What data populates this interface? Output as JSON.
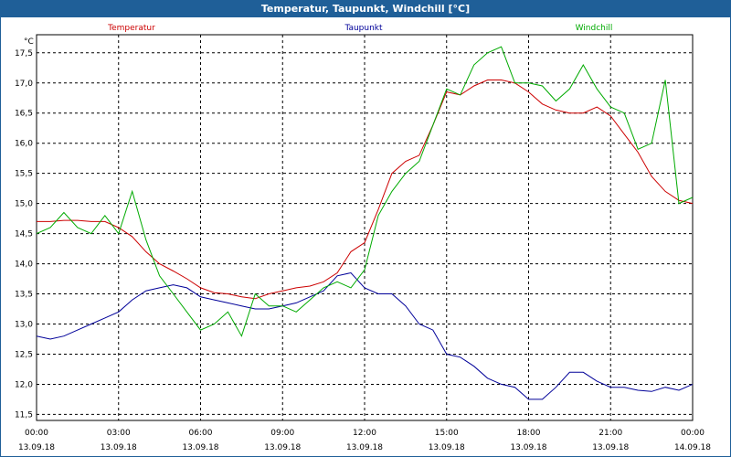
{
  "window": {
    "title": "Temperatur, Taupunkt, Windchill [°C]"
  },
  "colors": {
    "titlebar": "#1f5f98",
    "temperature": "#cc0000",
    "dewpoint": "#000099",
    "windchill": "#00aa00",
    "grid": "#000000"
  },
  "chart_data": {
    "type": "line",
    "title": "Temperatur, Taupunkt, Windchill [°C]",
    "ylabel": "°C",
    "ylim": [
      11.4,
      17.8
    ],
    "xlim": [
      0,
      24
    ],
    "grid": true,
    "legend_placement": "top",
    "y_ticks": [
      "11,5",
      "12,0",
      "12,5",
      "13,0",
      "13,5",
      "14,0",
      "14,5",
      "15,0",
      "15,5",
      "16,0",
      "16,5",
      "17,0",
      "17,5"
    ],
    "y_tick_values": [
      11.5,
      12.0,
      12.5,
      13.0,
      13.5,
      14.0,
      14.5,
      15.0,
      15.5,
      16.0,
      16.5,
      17.0,
      17.5
    ],
    "x_ticks": [
      {
        "time": "00:00",
        "date": "13.09.18"
      },
      {
        "time": "03:00",
        "date": "13.09.18"
      },
      {
        "time": "06:00",
        "date": "13.09.18"
      },
      {
        "time": "09:00",
        "date": "13.09.18"
      },
      {
        "time": "12:00",
        "date": "13.09.18"
      },
      {
        "time": "15:00",
        "date": "13.09.18"
      },
      {
        "time": "18:00",
        "date": "13.09.18"
      },
      {
        "time": "21:00",
        "date": "13.09.18"
      },
      {
        "time": "00:00",
        "date": "14.09.18"
      }
    ],
    "x_tick_hours": [
      0,
      3,
      6,
      9,
      12,
      15,
      18,
      21,
      24
    ],
    "series": [
      {
        "name": "Temperatur",
        "color": "#cc0000",
        "x": [
          0,
          0.5,
          1,
          1.5,
          2,
          2.5,
          3,
          3.5,
          4,
          4.5,
          5,
          5.5,
          6,
          6.5,
          7,
          7.5,
          8,
          8.5,
          9,
          9.5,
          10,
          10.5,
          11,
          11.5,
          12,
          12.5,
          13,
          13.5,
          14,
          14.5,
          15,
          15.5,
          16,
          16.5,
          17,
          17.5,
          18,
          18.5,
          19,
          19.5,
          20,
          20.5,
          21,
          21.5,
          22,
          22.5,
          23,
          23.5,
          24
        ],
        "values": [
          14.7,
          14.7,
          14.72,
          14.72,
          14.7,
          14.7,
          14.6,
          14.45,
          14.2,
          14.0,
          13.88,
          13.75,
          13.6,
          13.52,
          13.5,
          13.45,
          13.42,
          13.5,
          13.55,
          13.6,
          13.63,
          13.7,
          13.85,
          14.2,
          14.35,
          14.9,
          15.5,
          15.7,
          15.8,
          16.3,
          16.85,
          16.8,
          16.95,
          17.05,
          17.05,
          17.0,
          16.85,
          16.65,
          16.55,
          16.5,
          16.5,
          16.6,
          16.45,
          16.15,
          15.85,
          15.45,
          15.2,
          15.05,
          15.0
        ]
      },
      {
        "name": "Taupunkt",
        "color": "#000099",
        "x": [
          0,
          0.5,
          1,
          1.5,
          2,
          2.5,
          3,
          3.5,
          4,
          4.5,
          5,
          5.5,
          6,
          6.5,
          7,
          7.5,
          8,
          8.5,
          9,
          9.5,
          10,
          10.5,
          11,
          11.5,
          12,
          12.5,
          13,
          13.5,
          14,
          14.5,
          15,
          15.5,
          16,
          16.5,
          17,
          17.5,
          18,
          18.5,
          19,
          19.5,
          20,
          20.5,
          21,
          21.5,
          22,
          22.5,
          23,
          23.5,
          24
        ],
        "values": [
          12.8,
          12.75,
          12.8,
          12.9,
          13.0,
          13.1,
          13.2,
          13.4,
          13.55,
          13.6,
          13.65,
          13.6,
          13.45,
          13.4,
          13.35,
          13.3,
          13.25,
          13.25,
          13.3,
          13.35,
          13.45,
          13.55,
          13.8,
          13.85,
          13.6,
          13.5,
          13.5,
          13.3,
          13.0,
          12.9,
          12.5,
          12.45,
          12.3,
          12.1,
          12.0,
          11.95,
          11.75,
          11.75,
          11.95,
          12.2,
          12.2,
          12.05,
          11.95,
          11.95,
          11.9,
          11.88,
          11.95,
          11.9,
          12.0
        ]
      },
      {
        "name": "Windchill",
        "color": "#00aa00",
        "x": [
          0,
          0.5,
          1,
          1.5,
          2,
          2.5,
          3,
          3.5,
          4,
          4.5,
          5,
          5.5,
          6,
          6.5,
          7,
          7.5,
          8,
          8.5,
          9,
          9.5,
          10,
          10.5,
          11,
          11.5,
          12,
          12.5,
          13,
          13.5,
          14,
          14.5,
          15,
          15.5,
          16,
          16.5,
          17,
          17.5,
          18,
          18.5,
          19,
          19.5,
          20,
          20.5,
          21,
          21.5,
          22,
          22.5,
          23,
          23.5,
          24
        ],
        "values": [
          14.5,
          14.6,
          14.85,
          14.6,
          14.5,
          14.8,
          14.5,
          15.2,
          14.4,
          13.8,
          13.5,
          13.2,
          12.9,
          13.0,
          13.2,
          12.8,
          13.5,
          13.3,
          13.3,
          13.2,
          13.4,
          13.6,
          13.7,
          13.6,
          13.9,
          14.8,
          15.2,
          15.5,
          15.7,
          16.3,
          16.9,
          16.8,
          17.3,
          17.5,
          17.6,
          17.0,
          17.0,
          16.95,
          16.7,
          16.9,
          17.3,
          16.9,
          16.6,
          16.5,
          15.9,
          16.0,
          17.05,
          15.0,
          15.1
        ]
      }
    ]
  }
}
